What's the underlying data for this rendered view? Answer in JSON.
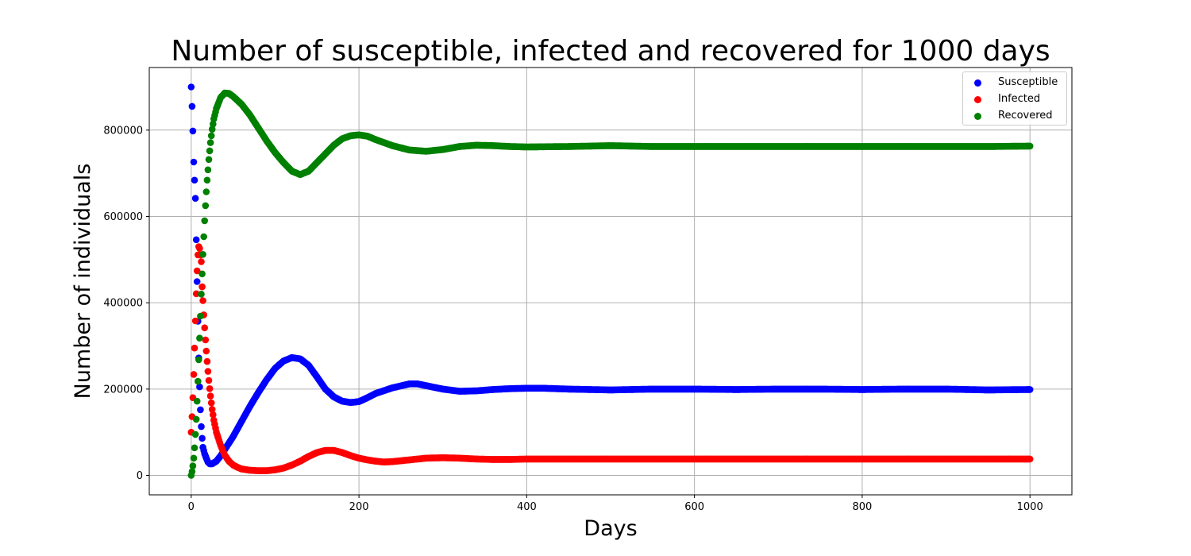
{
  "chart_data": {
    "type": "scatter",
    "title": "Number of susceptible, infected and recovered for 1000 days",
    "xlabel": "Days",
    "ylabel": "Number of individuals",
    "xlim": [
      -50,
      1050
    ],
    "ylim": [
      -45000,
      945000
    ],
    "xticks": [
      0,
      200,
      400,
      600,
      800,
      1000
    ],
    "yticks": [
      0,
      200000,
      400000,
      600000,
      800000
    ],
    "grid": true,
    "legend_position": "top-right",
    "series": [
      {
        "name": "Susceptible",
        "color": "#0000ff",
        "points": [
          [
            0,
            900000
          ],
          [
            1,
            855000
          ],
          [
            2,
            798000
          ],
          [
            3,
            726000
          ],
          [
            5,
            642000
          ],
          [
            6,
            546000
          ],
          [
            7,
            449000
          ],
          [
            8,
            357000
          ],
          [
            9,
            272000
          ],
          [
            10,
            205000
          ],
          [
            11,
            152000
          ],
          [
            12,
            113000
          ],
          [
            13,
            86000
          ],
          [
            14,
            65000
          ],
          [
            16,
            50000
          ],
          [
            18,
            40000
          ],
          [
            20,
            31000
          ],
          [
            22,
            27000
          ],
          [
            25,
            27000
          ],
          [
            30,
            33000
          ],
          [
            35,
            45000
          ],
          [
            40,
            60000
          ],
          [
            50,
            90000
          ],
          [
            60,
            125000
          ],
          [
            70,
            160000
          ],
          [
            80,
            192000
          ],
          [
            90,
            222000
          ],
          [
            100,
            248000
          ],
          [
            110,
            265000
          ],
          [
            120,
            273000
          ],
          [
            130,
            270000
          ],
          [
            140,
            255000
          ],
          [
            150,
            228000
          ],
          [
            160,
            200000
          ],
          [
            170,
            182000
          ],
          [
            180,
            172000
          ],
          [
            190,
            169000
          ],
          [
            200,
            171000
          ],
          [
            210,
            180000
          ],
          [
            220,
            190000
          ],
          [
            240,
            203000
          ],
          [
            260,
            212000
          ],
          [
            270,
            212000
          ],
          [
            280,
            208000
          ],
          [
            300,
            200000
          ],
          [
            320,
            195000
          ],
          [
            340,
            196000
          ],
          [
            360,
            199000
          ],
          [
            380,
            201000
          ],
          [
            400,
            202000
          ],
          [
            420,
            202000
          ],
          [
            450,
            200000
          ],
          [
            500,
            198000
          ],
          [
            550,
            200000
          ],
          [
            600,
            200000
          ],
          [
            650,
            199000
          ],
          [
            700,
            200000
          ],
          [
            750,
            200000
          ],
          [
            800,
            199000
          ],
          [
            850,
            200000
          ],
          [
            900,
            200000
          ],
          [
            950,
            198000
          ],
          [
            1000,
            199000
          ]
        ]
      },
      {
        "name": "Infected",
        "color": "#ff0000",
        "points": [
          [
            0,
            100000
          ],
          [
            1,
            136000
          ],
          [
            2,
            180000
          ],
          [
            3,
            234000
          ],
          [
            4,
            295000
          ],
          [
            5,
            358000
          ],
          [
            6,
            421000
          ],
          [
            7,
            474000
          ],
          [
            8,
            511000
          ],
          [
            9,
            530000
          ],
          [
            10,
            526000
          ],
          [
            12,
            495000
          ],
          [
            13,
            437000
          ],
          [
            14,
            405000
          ],
          [
            15,
            372000
          ],
          [
            16,
            342000
          ],
          [
            17,
            314000
          ],
          [
            18,
            288000
          ],
          [
            19,
            264000
          ],
          [
            20,
            241000
          ],
          [
            21,
            220000
          ],
          [
            22,
            201000
          ],
          [
            23,
            184000
          ],
          [
            24,
            168000
          ],
          [
            25,
            153000
          ],
          [
            27,
            128000
          ],
          [
            30,
            100000
          ],
          [
            35,
            70000
          ],
          [
            40,
            47000
          ],
          [
            45,
            33000
          ],
          [
            50,
            24000
          ],
          [
            55,
            19000
          ],
          [
            60,
            15000
          ],
          [
            70,
            12000
          ],
          [
            80,
            11000
          ],
          [
            90,
            11000
          ],
          [
            100,
            13000
          ],
          [
            110,
            17000
          ],
          [
            120,
            24000
          ],
          [
            130,
            33000
          ],
          [
            140,
            44000
          ],
          [
            150,
            53000
          ],
          [
            160,
            58000
          ],
          [
            170,
            58000
          ],
          [
            180,
            53000
          ],
          [
            190,
            46000
          ],
          [
            200,
            40000
          ],
          [
            210,
            36000
          ],
          [
            220,
            33000
          ],
          [
            230,
            31000
          ],
          [
            240,
            32000
          ],
          [
            260,
            36000
          ],
          [
            280,
            40000
          ],
          [
            300,
            41000
          ],
          [
            320,
            40000
          ],
          [
            340,
            38000
          ],
          [
            360,
            37000
          ],
          [
            380,
            37000
          ],
          [
            400,
            38000
          ],
          [
            450,
            38000
          ],
          [
            500,
            38000
          ],
          [
            550,
            38000
          ],
          [
            600,
            38000
          ],
          [
            650,
            38000
          ],
          [
            700,
            38000
          ],
          [
            750,
            38000
          ],
          [
            800,
            38000
          ],
          [
            850,
            38000
          ],
          [
            900,
            38000
          ],
          [
            950,
            38000
          ],
          [
            1000,
            38000
          ]
        ]
      },
      {
        "name": "Recovered",
        "color": "#008000",
        "points": [
          [
            0,
            0
          ],
          [
            1,
            9000
          ],
          [
            2,
            22000
          ],
          [
            3,
            40000
          ],
          [
            4,
            64000
          ],
          [
            5,
            95000
          ],
          [
            6,
            130000
          ],
          [
            7,
            172000
          ],
          [
            8,
            218000
          ],
          [
            9,
            268000
          ],
          [
            10,
            318000
          ],
          [
            11,
            369000
          ],
          [
            12,
            420000
          ],
          [
            13,
            467000
          ],
          [
            14,
            512000
          ],
          [
            15,
            553000
          ],
          [
            16,
            590000
          ],
          [
            17,
            625000
          ],
          [
            18,
            657000
          ],
          [
            19,
            684000
          ],
          [
            20,
            708000
          ],
          [
            21,
            732000
          ],
          [
            22,
            752000
          ],
          [
            23,
            771000
          ],
          [
            24,
            787000
          ],
          [
            25,
            802000
          ],
          [
            27,
            826000
          ],
          [
            30,
            850000
          ],
          [
            35,
            875000
          ],
          [
            40,
            886000
          ],
          [
            45,
            885000
          ],
          [
            50,
            878000
          ],
          [
            60,
            860000
          ],
          [
            70,
            835000
          ],
          [
            80,
            805000
          ],
          [
            90,
            775000
          ],
          [
            100,
            748000
          ],
          [
            110,
            725000
          ],
          [
            120,
            705000
          ],
          [
            130,
            697000
          ],
          [
            140,
            705000
          ],
          [
            150,
            725000
          ],
          [
            160,
            745000
          ],
          [
            170,
            765000
          ],
          [
            180,
            780000
          ],
          [
            190,
            787000
          ],
          [
            200,
            789000
          ],
          [
            210,
            786000
          ],
          [
            220,
            778000
          ],
          [
            240,
            764000
          ],
          [
            260,
            754000
          ],
          [
            280,
            751000
          ],
          [
            300,
            755000
          ],
          [
            320,
            762000
          ],
          [
            340,
            765000
          ],
          [
            360,
            764000
          ],
          [
            380,
            762000
          ],
          [
            400,
            761000
          ],
          [
            450,
            762000
          ],
          [
            500,
            764000
          ],
          [
            550,
            762000
          ],
          [
            600,
            762000
          ],
          [
            650,
            762000
          ],
          [
            700,
            762000
          ],
          [
            750,
            762000
          ],
          [
            800,
            762000
          ],
          [
            850,
            762000
          ],
          [
            900,
            762000
          ],
          [
            950,
            762000
          ],
          [
            1000,
            763000
          ]
        ]
      }
    ]
  }
}
